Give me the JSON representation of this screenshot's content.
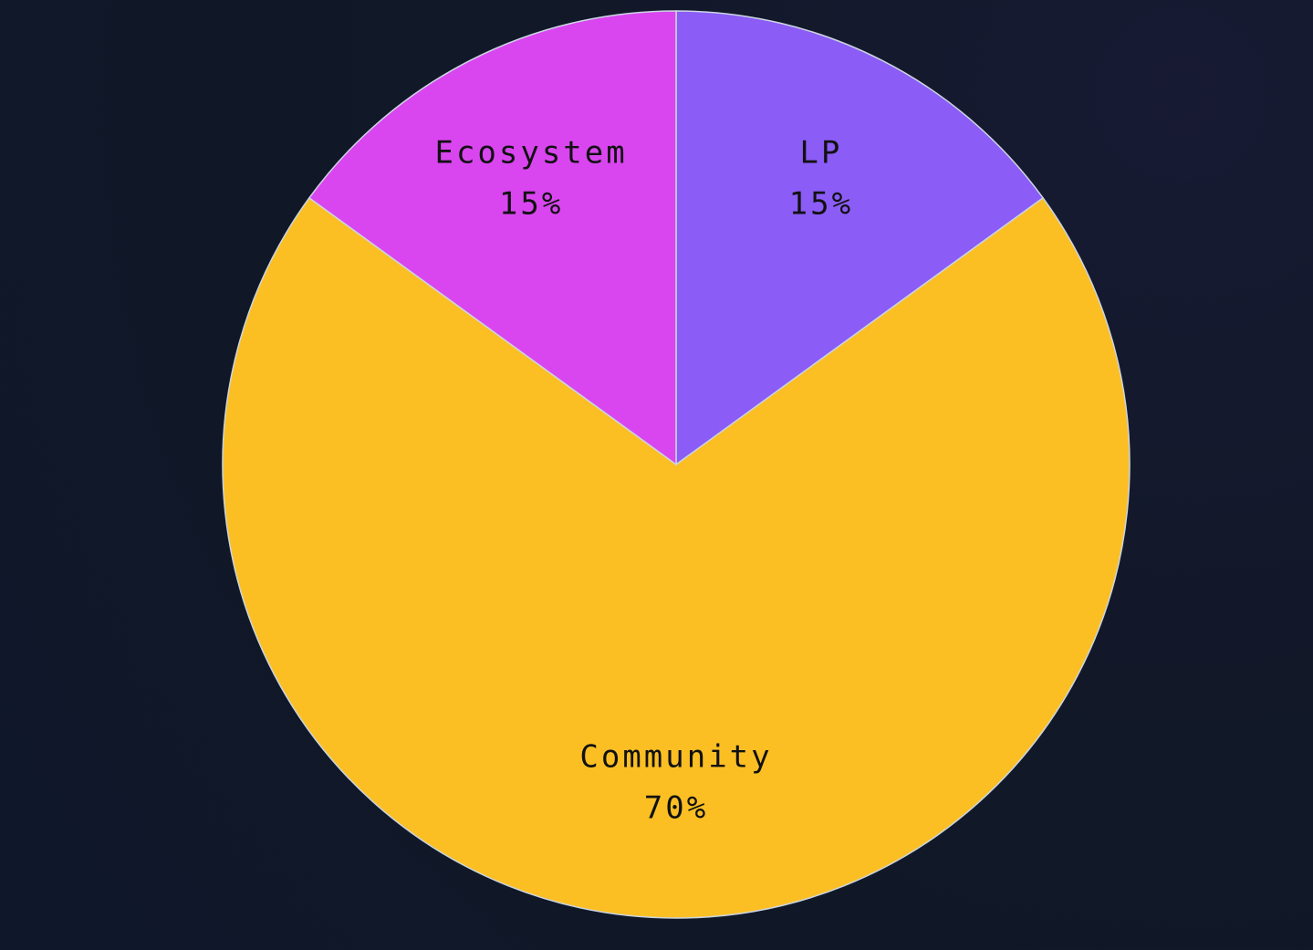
{
  "chart_data": {
    "type": "pie",
    "categories": [
      "LP",
      "Community",
      "Ecosystem"
    ],
    "values": [
      15,
      70,
      15
    ],
    "value_labels": [
      "15%",
      "70%",
      "15%"
    ],
    "colors": [
      "#8b5cf6",
      "#fbbf24",
      "#d946ef"
    ]
  }
}
